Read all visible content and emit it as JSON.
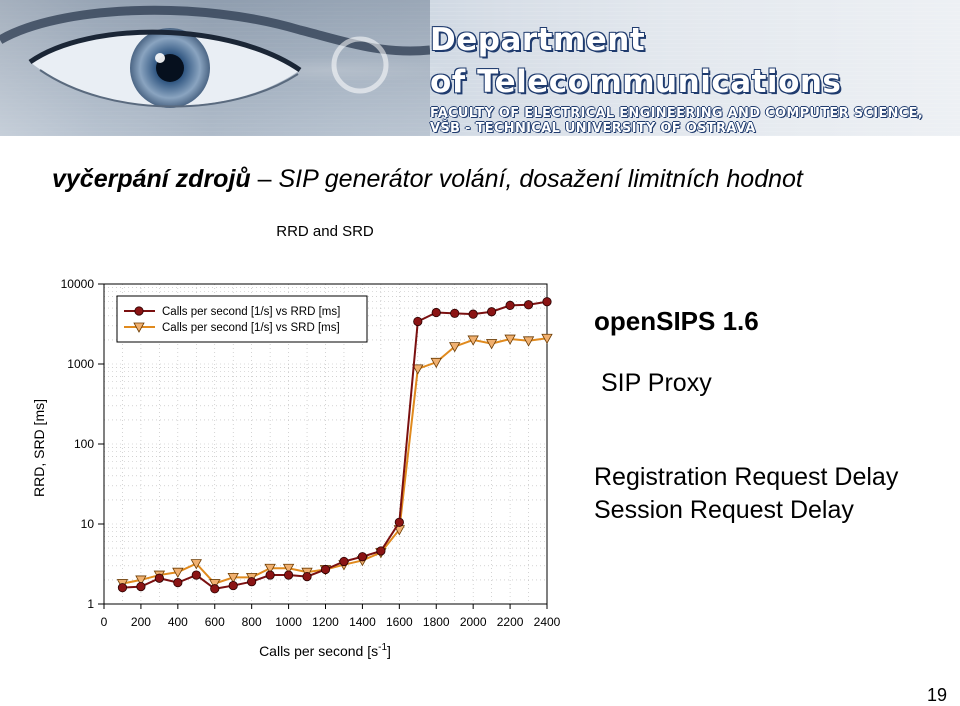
{
  "banner": {
    "logo_line1": "Department",
    "logo_line2": "of Telecommunications",
    "logo_line3": "FACULTY OF ELECTRICAL ENGINEERING AND COMPUTER SCIENCE,",
    "logo_line4": "VŠB - TECHNICAL UNIVERSITY OF OSTRAVA"
  },
  "slide": {
    "title_bold": "vyčerpání zdrojů",
    "title_dash": " – ",
    "title_rest": "SIP generátor volání, dosažení limitních hodnot",
    "product": "openSIPS 1.6",
    "role": "SIP Proxy",
    "metric1": "Registration Request Delay",
    "metric2": "Session Request Delay",
    "page_number": "19"
  },
  "colors": {
    "rrd_line": "#7a1010",
    "rrd_marker": "#8b1414",
    "srd_line": "#e08a1e",
    "srd_marker": "#f0b070",
    "grid": "#b8b8b8",
    "banner_text_outline": "#1f3b6e"
  },
  "chart_data": {
    "type": "line",
    "title": "RRD and SRD",
    "xlabel": "Calls per second [s",
    "xlabel_sup": "-1",
    "xlabel_end": "]",
    "ylabel": "RRD, SRD [ms]",
    "y_scale": "log",
    "xlim": [
      0,
      2400
    ],
    "ylim": [
      1,
      10000
    ],
    "x_ticks": [
      "0",
      "200",
      "400",
      "600",
      "800",
      "1000",
      "1200",
      "1400",
      "1600",
      "1800",
      "2000",
      "2200",
      "2400"
    ],
    "y_ticks": [
      "1",
      "10",
      "100",
      "1000",
      "10000"
    ],
    "grid": true,
    "legend_position": "top-left",
    "x": [
      100,
      200,
      300,
      400,
      500,
      600,
      700,
      800,
      900,
      1000,
      1100,
      1200,
      1300,
      1400,
      1500,
      1600,
      1700,
      1800,
      1900,
      2000,
      2100,
      2200,
      2300,
      2400
    ],
    "series": [
      {
        "name": "Calls per second [1/s] vs RRD [ms]",
        "marker": "circle",
        "values": [
          1.6,
          1.65,
          2.1,
          1.85,
          2.3,
          1.55,
          1.7,
          1.9,
          2.3,
          2.3,
          2.2,
          2.7,
          3.4,
          3.9,
          4.6,
          10.5,
          3400,
          4400,
          4300,
          4200,
          4500,
          5400,
          5500,
          6000
        ]
      },
      {
        "name": "Calls per second [1/s] vs SRD [ms]",
        "marker": "triangle-down",
        "values": [
          1.8,
          2.0,
          2.3,
          2.5,
          3.2,
          1.8,
          2.15,
          2.15,
          2.8,
          2.8,
          2.5,
          2.7,
          3.1,
          3.5,
          4.4,
          8.5,
          870,
          1050,
          1650,
          2000,
          1800,
          2050,
          1950,
          2100
        ]
      }
    ]
  }
}
